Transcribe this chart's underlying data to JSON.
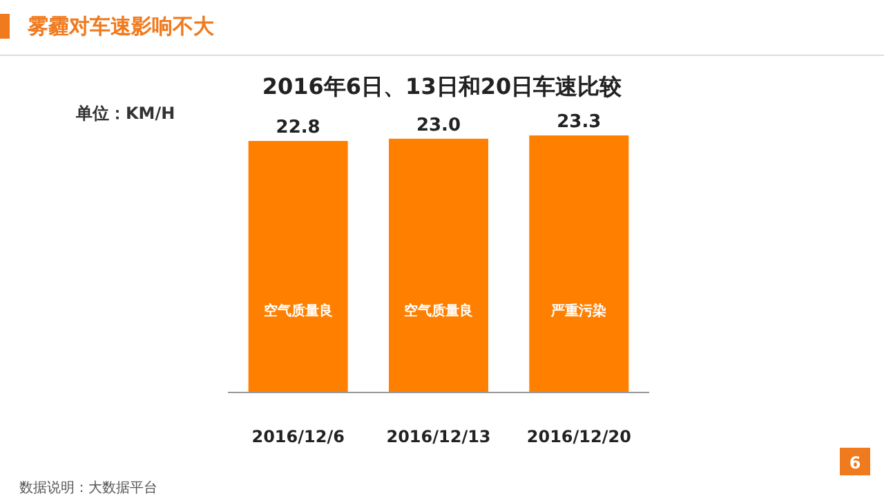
{
  "chart_data": {
    "type": "bar",
    "title": "雾霾对车速影响不大",
    "subtitle": "2016年6日、13日和20日车速比较",
    "ylabel": "单位：KM/H",
    "categories": [
      "2016/12/6",
      "2016/12/13",
      "2016/12/20"
    ],
    "values": [
      22.8,
      23.0,
      23.3
    ],
    "value_labels": [
      "22.8",
      "23.0",
      "23.3"
    ],
    "color": "#ff7f00",
    "annotations": [
      "空气质量良",
      "空气质量良",
      "严重污染",
      "数据说明：大数据平台",
      "6"
    ]
  }
}
